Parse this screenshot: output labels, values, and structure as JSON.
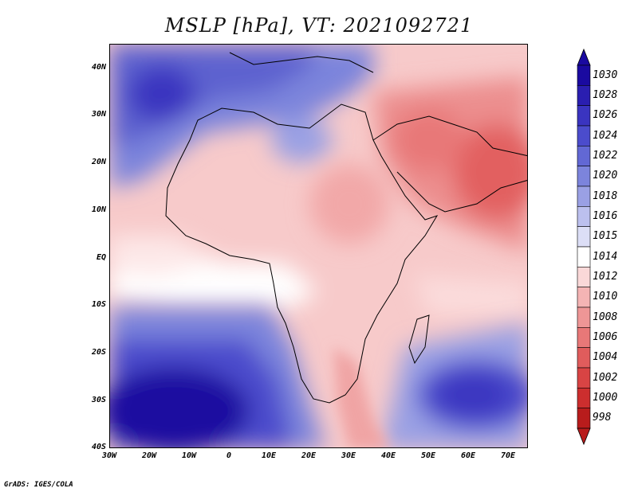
{
  "title": "MSLP [hPa], VT: 2021092721",
  "credit": "GrADS: IGES/COLA",
  "map": {
    "variable": "Mean sea level pressure",
    "units": "hPa",
    "valid_time": "2021092721",
    "lon_range": [
      -30,
      75
    ],
    "lat_range": [
      -40,
      45
    ],
    "lon_ticks": [
      "30W",
      "20W",
      "10W",
      "0",
      "10E",
      "20E",
      "30E",
      "40E",
      "50E",
      "60E",
      "70E"
    ],
    "lat_ticks": [
      "40N",
      "30N",
      "20N",
      "10N",
      "EQ",
      "10S",
      "20S",
      "30S",
      "40S"
    ]
  },
  "colorbar": {
    "levels": [
      "1030",
      "1028",
      "1026",
      "1024",
      "1022",
      "1020",
      "1018",
      "1016",
      "1015",
      "1014",
      "1012",
      "1010",
      "1008",
      "1006",
      "1004",
      "1002",
      "1000",
      "998"
    ],
    "colors": [
      "#1a0aa0",
      "#2a1eb0",
      "#3a34c0",
      "#4b4ccc",
      "#6268d4",
      "#7c84dc",
      "#9aa0e4",
      "#bcc0ee",
      "#dcdef6",
      "#ffffff",
      "#fad8d8",
      "#f4b4b4",
      "#ee9696",
      "#e87878",
      "#e05c5c",
      "#d84444",
      "#cc2e2e",
      "#b81c1c"
    ]
  }
}
